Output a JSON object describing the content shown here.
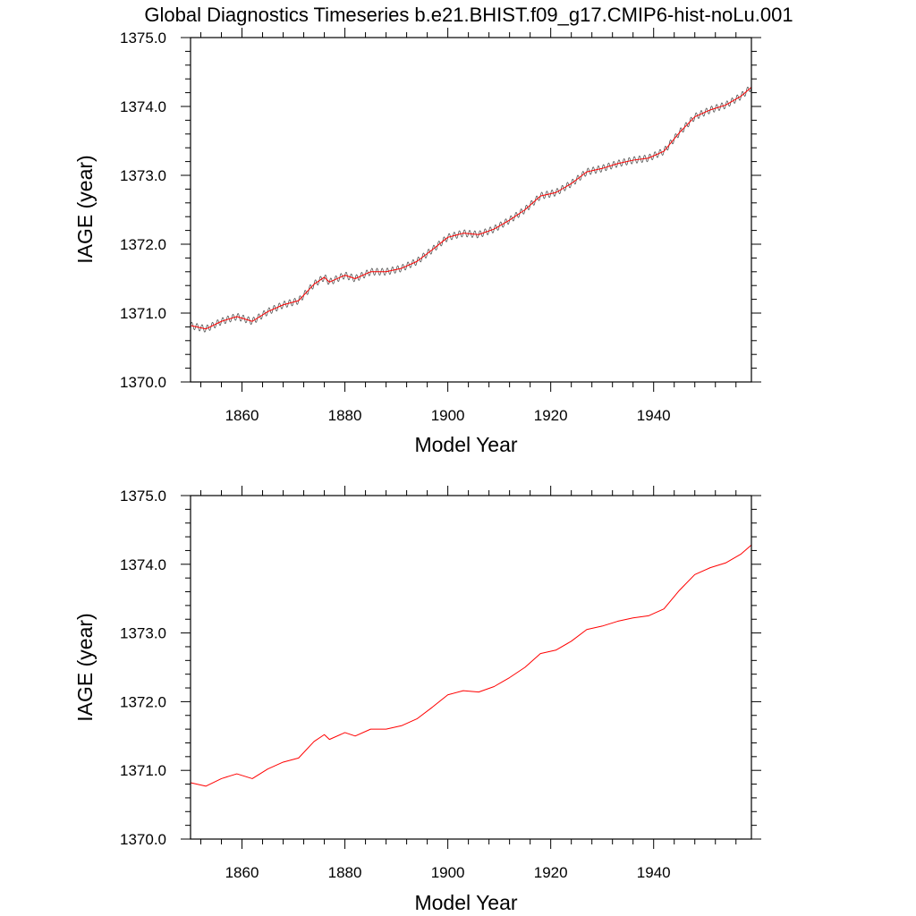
{
  "title": "Global Diagnostics Timeseries b.e21.BHIST.f09_g17.CMIP6-hist-noLu.001",
  "chart_data": [
    {
      "type": "line",
      "panel": "top",
      "xlabel": "Model Year",
      "ylabel": "IAGE (year)",
      "xlim": [
        1850,
        1959
      ],
      "ylim": [
        1370.0,
        1375.0
      ],
      "x_ticks": [
        1860,
        1880,
        1900,
        1920,
        1940
      ],
      "x_tick_labels": [
        "1860",
        "1880",
        "1900",
        "1920",
        "1940"
      ],
      "y_ticks": [
        1370.0,
        1371.0,
        1372.0,
        1373.0,
        1374.0,
        1375.0
      ],
      "y_tick_labels": [
        "1370.0",
        "1371.0",
        "1372.0",
        "1373.0",
        "1374.0",
        "1375.0"
      ],
      "series": [
        {
          "color": "#555555",
          "kind": "monthly",
          "seasonal_amplitude": 0.05
        },
        {
          "color": "#ff0000",
          "kind": "annual"
        }
      ],
      "x": [
        1850,
        1853,
        1856,
        1859,
        1862,
        1865,
        1868,
        1871,
        1874,
        1876,
        1877,
        1880,
        1882,
        1885,
        1888,
        1891,
        1894,
        1897,
        1900,
        1903,
        1906,
        1909,
        1912,
        1915,
        1918,
        1921,
        1924,
        1927,
        1930,
        1933,
        1936,
        1939,
        1942,
        1945,
        1948,
        1951,
        1954,
        1957,
        1959
      ],
      "values": [
        1370.82,
        1370.77,
        1370.88,
        1370.95,
        1370.88,
        1371.02,
        1371.12,
        1371.18,
        1371.42,
        1371.52,
        1371.45,
        1371.55,
        1371.5,
        1371.6,
        1371.6,
        1371.65,
        1371.75,
        1371.92,
        1372.1,
        1372.16,
        1372.14,
        1372.22,
        1372.35,
        1372.5,
        1372.7,
        1372.75,
        1372.88,
        1373.05,
        1373.1,
        1373.17,
        1373.22,
        1373.25,
        1373.35,
        1373.62,
        1373.85,
        1373.95,
        1374.02,
        1374.15,
        1374.28
      ]
    },
    {
      "type": "line",
      "panel": "bottom",
      "xlabel": "Model Year",
      "ylabel": "IAGE (year)",
      "xlim": [
        1850,
        1959
      ],
      "ylim": [
        1370.0,
        1375.0
      ],
      "x_ticks": [
        1860,
        1880,
        1900,
        1920,
        1940
      ],
      "x_tick_labels": [
        "1860",
        "1880",
        "1900",
        "1920",
        "1940"
      ],
      "y_ticks": [
        1370.0,
        1371.0,
        1372.0,
        1373.0,
        1374.0,
        1375.0
      ],
      "y_tick_labels": [
        "1370.0",
        "1371.0",
        "1372.0",
        "1373.0",
        "1374.0",
        "1375.0"
      ],
      "series": [
        {
          "color": "#ff0000",
          "kind": "annual"
        }
      ],
      "x": [
        1850,
        1853,
        1856,
        1859,
        1862,
        1865,
        1868,
        1871,
        1874,
        1876,
        1877,
        1880,
        1882,
        1885,
        1888,
        1891,
        1894,
        1897,
        1900,
        1903,
        1906,
        1909,
        1912,
        1915,
        1918,
        1921,
        1924,
        1927,
        1930,
        1933,
        1936,
        1939,
        1942,
        1945,
        1948,
        1951,
        1954,
        1957,
        1959
      ],
      "values": [
        1370.82,
        1370.77,
        1370.88,
        1370.95,
        1370.88,
        1371.02,
        1371.12,
        1371.18,
        1371.42,
        1371.52,
        1371.45,
        1371.55,
        1371.5,
        1371.6,
        1371.6,
        1371.65,
        1371.75,
        1371.92,
        1372.1,
        1372.16,
        1372.14,
        1372.22,
        1372.35,
        1372.5,
        1372.7,
        1372.75,
        1372.88,
        1373.05,
        1373.1,
        1373.17,
        1373.22,
        1373.25,
        1373.35,
        1373.62,
        1373.85,
        1373.95,
        1374.02,
        1374.15,
        1374.28
      ]
    }
  ]
}
